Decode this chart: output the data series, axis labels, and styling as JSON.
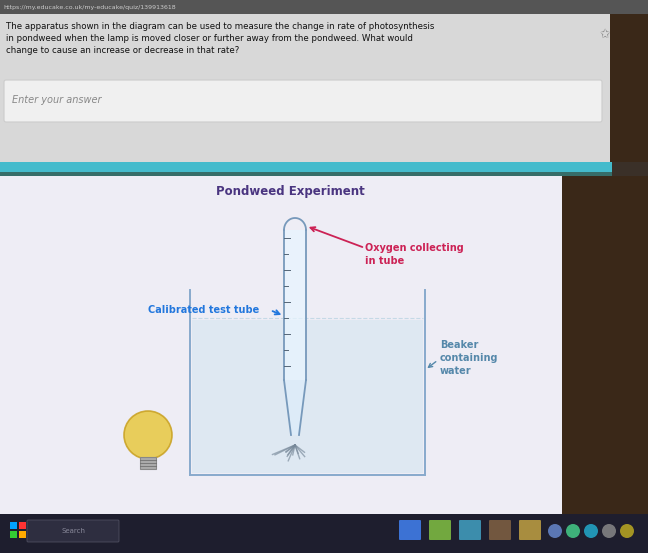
{
  "url_text": "https://my.educake.co.uk/my-educake/quiz/139913618",
  "q_line1": "The apparatus shown in the diagram can be used to measure the change in rate of photosynthesis",
  "q_line2": "in pondweed when the lamp is moved closer or further away from the pondweed. What would",
  "q_line3": "change to cause an increase or decrease in that rate?",
  "answer_placeholder": "Enter your answer",
  "diagram_title": "Pondweed Experiment",
  "diagram_title_color": "#4a3580",
  "label_calibrated": "Calibrated test tube",
  "label_calibrated_color": "#2277dd",
  "label_oxygen1": "Oxygen collecting",
  "label_oxygen2": "in tube",
  "label_oxygen_color": "#cc2255",
  "label_beaker1": "Beaker",
  "label_beaker2": "containing",
  "label_beaker3": "water",
  "label_beaker_color": "#5588aa",
  "bg_outer": "#3a3028",
  "bg_top_bar": "#444444",
  "bg_question": "#dcdcdc",
  "bg_answer_box": "#e8e8e8",
  "bg_diagram": "#eeeef5",
  "teal_bar": "#44bbcc",
  "taskbar_bg": "#222233",
  "tube_color": "#99bbcc",
  "beaker_color": "#88aacc",
  "lamp_fill": "#e8c840",
  "lamp_edge": "#c8a020",
  "plant_color": "#8899aa"
}
